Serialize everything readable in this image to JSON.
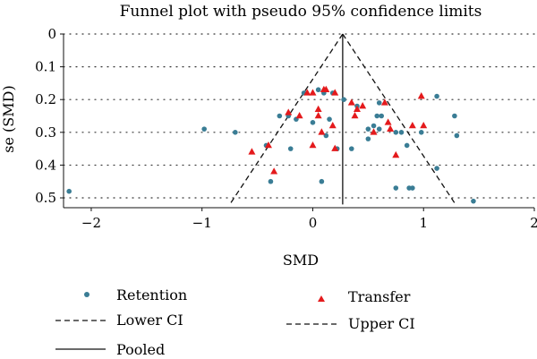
{
  "chart_data": {
    "type": "scatter",
    "title": "Funnel plot with pseudo 95% confidence limits",
    "xlabel": "SMD",
    "ylabel": "se (SMD)",
    "xlim": [
      -2.25,
      2.0
    ],
    "ylim": [
      0.53,
      0.0
    ],
    "y_reversed": true,
    "x_ticks": [
      -2,
      -1,
      0,
      1,
      2
    ],
    "x_tick_labels": [
      "−2",
      "−1",
      "0",
      "1",
      "2"
    ],
    "y_ticks": [
      0,
      0.1,
      0.2,
      0.3,
      0.4,
      0.5
    ],
    "y_tick_labels": [
      "0",
      "0.1",
      "0.2",
      "0.3",
      "0.4",
      "0.5"
    ],
    "horizontal_dotted_gridlines": true,
    "pooled_smd": 0.27,
    "ci_se_max": 0.52,
    "legend_placement": "bottom",
    "series": [
      {
        "name": "Retention",
        "marker": "circle",
        "color": "#3a7d95",
        "points": [
          [
            -2.2,
            0.48
          ],
          [
            -0.98,
            0.29
          ],
          [
            -0.7,
            0.3
          ],
          [
            -0.42,
            0.34
          ],
          [
            -0.38,
            0.45
          ],
          [
            -0.3,
            0.25
          ],
          [
            -0.22,
            0.25
          ],
          [
            -0.2,
            0.35
          ],
          [
            -0.15,
            0.26
          ],
          [
            -0.08,
            0.18
          ],
          [
            0.0,
            0.27
          ],
          [
            0.05,
            0.17
          ],
          [
            0.08,
            0.45
          ],
          [
            0.1,
            0.18
          ],
          [
            0.12,
            0.31
          ],
          [
            0.15,
            0.26
          ],
          [
            0.18,
            0.18
          ],
          [
            0.22,
            0.35
          ],
          [
            0.28,
            0.2
          ],
          [
            0.35,
            0.35
          ],
          [
            0.4,
            0.22
          ],
          [
            0.5,
            0.29
          ],
          [
            0.5,
            0.32
          ],
          [
            0.55,
            0.28
          ],
          [
            0.58,
            0.25
          ],
          [
            0.6,
            0.29
          ],
          [
            0.6,
            0.21
          ],
          [
            0.62,
            0.25
          ],
          [
            0.75,
            0.47
          ],
          [
            0.75,
            0.3
          ],
          [
            0.8,
            0.3
          ],
          [
            0.85,
            0.34
          ],
          [
            0.87,
            0.47
          ],
          [
            0.9,
            0.47
          ],
          [
            0.98,
            0.3
          ],
          [
            1.12,
            0.19
          ],
          [
            1.12,
            0.41
          ],
          [
            1.28,
            0.25
          ],
          [
            1.3,
            0.31
          ],
          [
            1.45,
            0.51
          ]
        ]
      },
      {
        "name": "Transfer",
        "marker": "triangle",
        "color": "#e41a1c",
        "points": [
          [
            -0.55,
            0.36
          ],
          [
            -0.4,
            0.34
          ],
          [
            -0.35,
            0.42
          ],
          [
            -0.22,
            0.24
          ],
          [
            -0.12,
            0.25
          ],
          [
            -0.05,
            0.18
          ],
          [
            0.0,
            0.18
          ],
          [
            0.0,
            0.34
          ],
          [
            0.05,
            0.23
          ],
          [
            0.05,
            0.25
          ],
          [
            0.08,
            0.3
          ],
          [
            0.1,
            0.17
          ],
          [
            0.12,
            0.17
          ],
          [
            0.18,
            0.28
          ],
          [
            0.2,
            0.35
          ],
          [
            0.2,
            0.18
          ],
          [
            0.35,
            0.21
          ],
          [
            0.38,
            0.25
          ],
          [
            0.4,
            0.23
          ],
          [
            0.45,
            0.22
          ],
          [
            0.55,
            0.3
          ],
          [
            0.65,
            0.21
          ],
          [
            0.68,
            0.27
          ],
          [
            0.7,
            0.29
          ],
          [
            0.75,
            0.37
          ],
          [
            0.9,
            0.28
          ],
          [
            0.98,
            0.19
          ],
          [
            1.0,
            0.28
          ]
        ]
      }
    ],
    "legend": {
      "retention": "Retention",
      "transfer": "Transfer",
      "lower_ci": "Lower CI",
      "upper_ci": "Upper CI",
      "pooled": "Pooled"
    }
  }
}
